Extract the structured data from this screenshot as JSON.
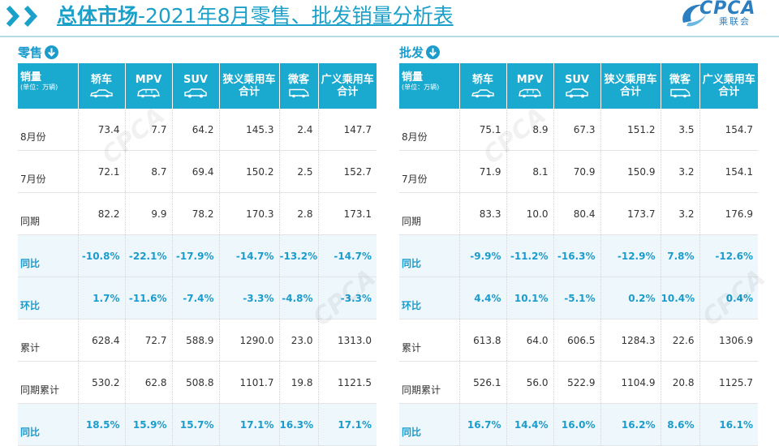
{
  "header": {
    "title_bold": "总体市场",
    "title_rest": "-2021年8月零售、批发销量分析表",
    "logo_text": "CPCA",
    "logo_cn": "乘联会"
  },
  "columns": [
    {
      "label": "轿车",
      "icon": "sedan-icon"
    },
    {
      "label": "MPV",
      "icon": "mpv-icon"
    },
    {
      "label": "SUV",
      "icon": "suv-icon"
    },
    {
      "label": "狭义乘用车合计",
      "icon": ""
    },
    {
      "label": "微客",
      "icon": "minivan-icon"
    },
    {
      "label": "广义乘用车合计",
      "icon": ""
    }
  ],
  "corner_label": "销量",
  "corner_sub": "(单位：万辆)",
  "retail": {
    "title": "零售",
    "rows": [
      {
        "label": "8月份",
        "values": [
          "73.4",
          "7.7",
          "64.2",
          "145.3",
          "2.4",
          "147.7"
        ],
        "highlight": false
      },
      {
        "label": "7月份",
        "values": [
          "72.1",
          "8.7",
          "69.4",
          "150.2",
          "2.5",
          "152.7"
        ],
        "highlight": false
      },
      {
        "label": "同期",
        "values": [
          "82.2",
          "9.9",
          "78.2",
          "170.3",
          "2.8",
          "173.1"
        ],
        "highlight": false
      },
      {
        "label": "同比",
        "values": [
          "-10.8%",
          "-22.1%",
          "-17.9%",
          "-14.7%",
          "-13.2%",
          "-14.7%"
        ],
        "highlight": true
      },
      {
        "label": "环比",
        "values": [
          "1.7%",
          "-11.6%",
          "-7.4%",
          "-3.3%",
          "-4.8%",
          "-3.3%"
        ],
        "highlight": true
      },
      {
        "label": "累计",
        "values": [
          "628.4",
          "72.7",
          "588.9",
          "1290.0",
          "23.0",
          "1313.0"
        ],
        "highlight": false
      },
      {
        "label": "同期累计",
        "values": [
          "530.2",
          "62.8",
          "508.8",
          "1101.7",
          "19.8",
          "1121.5"
        ],
        "highlight": false
      },
      {
        "label": "同比",
        "values": [
          "18.5%",
          "15.9%",
          "15.7%",
          "17.1%",
          "16.3%",
          "17.1%"
        ],
        "highlight": true
      }
    ]
  },
  "wholesale": {
    "title": "批发",
    "rows": [
      {
        "label": "8月份",
        "values": [
          "75.1",
          "8.9",
          "67.3",
          "151.2",
          "3.5",
          "154.7"
        ],
        "highlight": false
      },
      {
        "label": "7月份",
        "values": [
          "71.9",
          "8.1",
          "70.9",
          "150.9",
          "3.2",
          "154.1"
        ],
        "highlight": false
      },
      {
        "label": "同期",
        "values": [
          "83.3",
          "10.0",
          "80.4",
          "173.7",
          "3.2",
          "176.9"
        ],
        "highlight": false
      },
      {
        "label": "同比",
        "values": [
          "-9.9%",
          "-11.2%",
          "-16.3%",
          "-12.9%",
          "7.8%",
          "-12.6%"
        ],
        "highlight": true
      },
      {
        "label": "环比",
        "values": [
          "4.4%",
          "10.1%",
          "-5.1%",
          "0.2%",
          "10.4%",
          "0.4%"
        ],
        "highlight": true
      },
      {
        "label": "累计",
        "values": [
          "613.8",
          "64.0",
          "606.5",
          "1284.3",
          "22.6",
          "1306.9"
        ],
        "highlight": false
      },
      {
        "label": "同期累计",
        "values": [
          "526.1",
          "56.0",
          "522.9",
          "1104.9",
          "20.8",
          "1125.7"
        ],
        "highlight": false
      },
      {
        "label": "同比",
        "values": [
          "16.7%",
          "14.4%",
          "16.0%",
          "16.2%",
          "8.6%",
          "16.1%"
        ],
        "highlight": true
      }
    ]
  },
  "colors": {
    "accent": "#1aa9cf",
    "title": "#1aa0c9",
    "highlight_bg": "#eef8fc"
  }
}
